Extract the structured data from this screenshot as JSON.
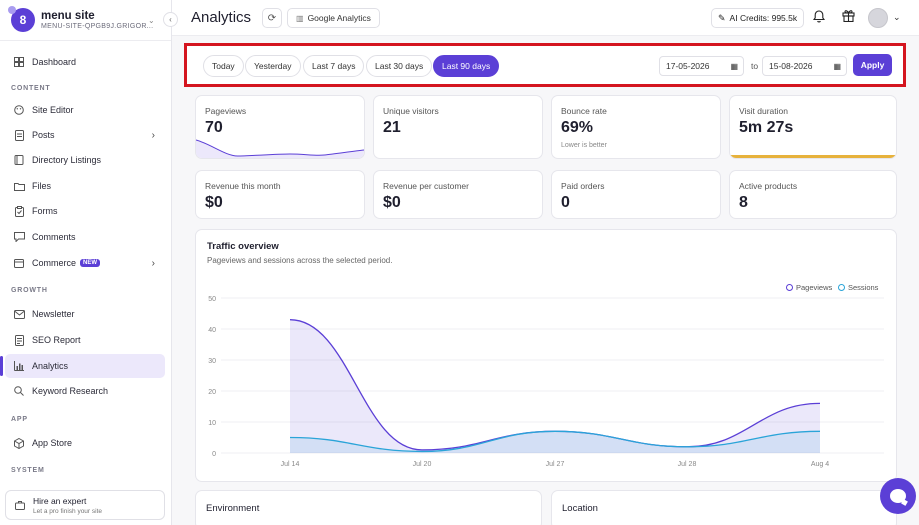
{
  "sidebar": {
    "brand_name": "menu site",
    "brand_sub": "MENU-SITE-QPGB9J.GRIGOR...",
    "brand_logo": "8",
    "sections": {
      "content": "CONTENT",
      "growth": "GROWTH",
      "app": "APP",
      "system": "SYSTEM"
    },
    "items": [
      {
        "label": "Dashboard",
        "icon": "dashboard-icon"
      },
      {
        "label": "Site Editor",
        "icon": "palette-icon"
      },
      {
        "label": "Posts",
        "icon": "document-icon"
      },
      {
        "label": "Directory Listings",
        "icon": "book-icon"
      },
      {
        "label": "Files",
        "icon": "folder-icon"
      },
      {
        "label": "Forms",
        "icon": "clipboard-icon"
      },
      {
        "label": "Comments",
        "icon": "comment-icon"
      },
      {
        "label": "Commerce",
        "icon": "cart-icon",
        "badge": "NEW"
      },
      {
        "label": "Newsletter",
        "icon": "mail-icon"
      },
      {
        "label": "SEO Report",
        "icon": "report-icon"
      },
      {
        "label": "Analytics",
        "icon": "bar-chart-icon",
        "active": true
      },
      {
        "label": "Keyword Research",
        "icon": "search-icon"
      },
      {
        "label": "App Store",
        "icon": "package-icon"
      }
    ],
    "hire": {
      "title": "Hire an expert",
      "subtitle": "Let a pro finish your site"
    }
  },
  "header": {
    "title": "Analytics",
    "ga_label": "Google Analytics",
    "credits": "AI Credits: 995.5k"
  },
  "filters": {
    "ranges": [
      "Today",
      "Yesterday",
      "Last 7 days",
      "Last 30 days",
      "Last 90 days"
    ],
    "active_range": "Last 90 days",
    "from_date": "17-05-2026",
    "to_label": "to",
    "to_date": "15-08-2026",
    "apply": "Apply"
  },
  "stats": [
    {
      "label": "Pageviews",
      "value": "70"
    },
    {
      "label": "Unique visitors",
      "value": "21"
    },
    {
      "label": "Bounce rate",
      "value": "69%",
      "note": "Lower is better"
    },
    {
      "label": "Visit duration",
      "value": "5m 27s"
    },
    {
      "label": "Revenue this month",
      "value": "$0"
    },
    {
      "label": "Revenue per customer",
      "value": "$0"
    },
    {
      "label": "Paid orders",
      "value": "0"
    },
    {
      "label": "Active products",
      "value": "8"
    }
  ],
  "chart": {
    "title": "Traffic overview",
    "subtitle": "Pageviews and sessions across the selected period.",
    "legend": [
      "Pageviews",
      "Sessions"
    ]
  },
  "chart_data": {
    "type": "area",
    "x": [
      "Jul 14",
      "Jul 20",
      "Jul 27",
      "Jul 28",
      "Aug 4"
    ],
    "series": [
      {
        "name": "Pageviews",
        "values": [
          43,
          1,
          7,
          2,
          16
        ],
        "color": "#5b3fd6"
      },
      {
        "name": "Sessions",
        "values": [
          5,
          0.5,
          7,
          2,
          7
        ],
        "color": "#2aa4d8"
      }
    ],
    "y_ticks": [
      0,
      10,
      20,
      30,
      40,
      50
    ],
    "ylim": [
      0,
      50
    ],
    "grid": true,
    "legend_position": "top-right"
  },
  "bottom_cards": {
    "environment": "Environment",
    "location": "Location"
  },
  "colors": {
    "accent": "#5b3fd6",
    "highlight": "#d4151f",
    "duration": "#e7b23c"
  }
}
